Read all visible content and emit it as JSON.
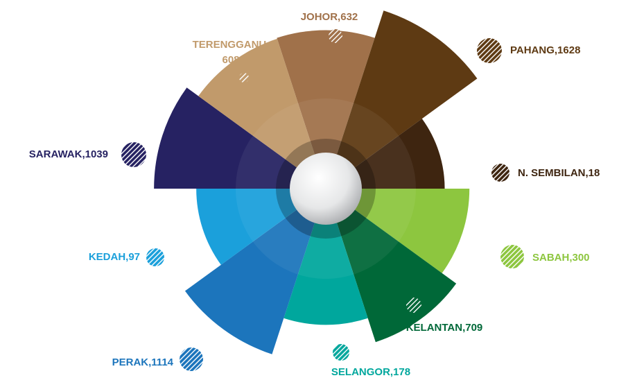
{
  "chart_data": {
    "type": "rose",
    "categories": [
      "JOHOR",
      "PAHANG",
      "N. SEMBILAN",
      "SABAH",
      "KELANTAN",
      "SELANGOR",
      "PERAK",
      "KEDAH",
      "SARAWAK",
      "TERENGGANU"
    ],
    "labels": [
      "JOHOR,632",
      "PAHANG,1628",
      "N. SEMBILAN,18",
      "SABAH,300",
      "KELANTAN,709",
      "SELANGOR,178",
      "PERAK,1114",
      "KEDAH,97",
      "SARAWAK,1039",
      [
        "TERENGGANU,",
        "608"
      ]
    ],
    "values": [
      632,
      1628,
      18,
      300,
      709,
      178,
      1114,
      97,
      1039,
      608
    ],
    "colors": [
      "#a0714a",
      "#5e3a13",
      "#3e2510",
      "#8dc63f",
      "#006838",
      "#00a79d",
      "#1c75bc",
      "#1ba0db",
      "#262262",
      "#c19a6b"
    ]
  }
}
